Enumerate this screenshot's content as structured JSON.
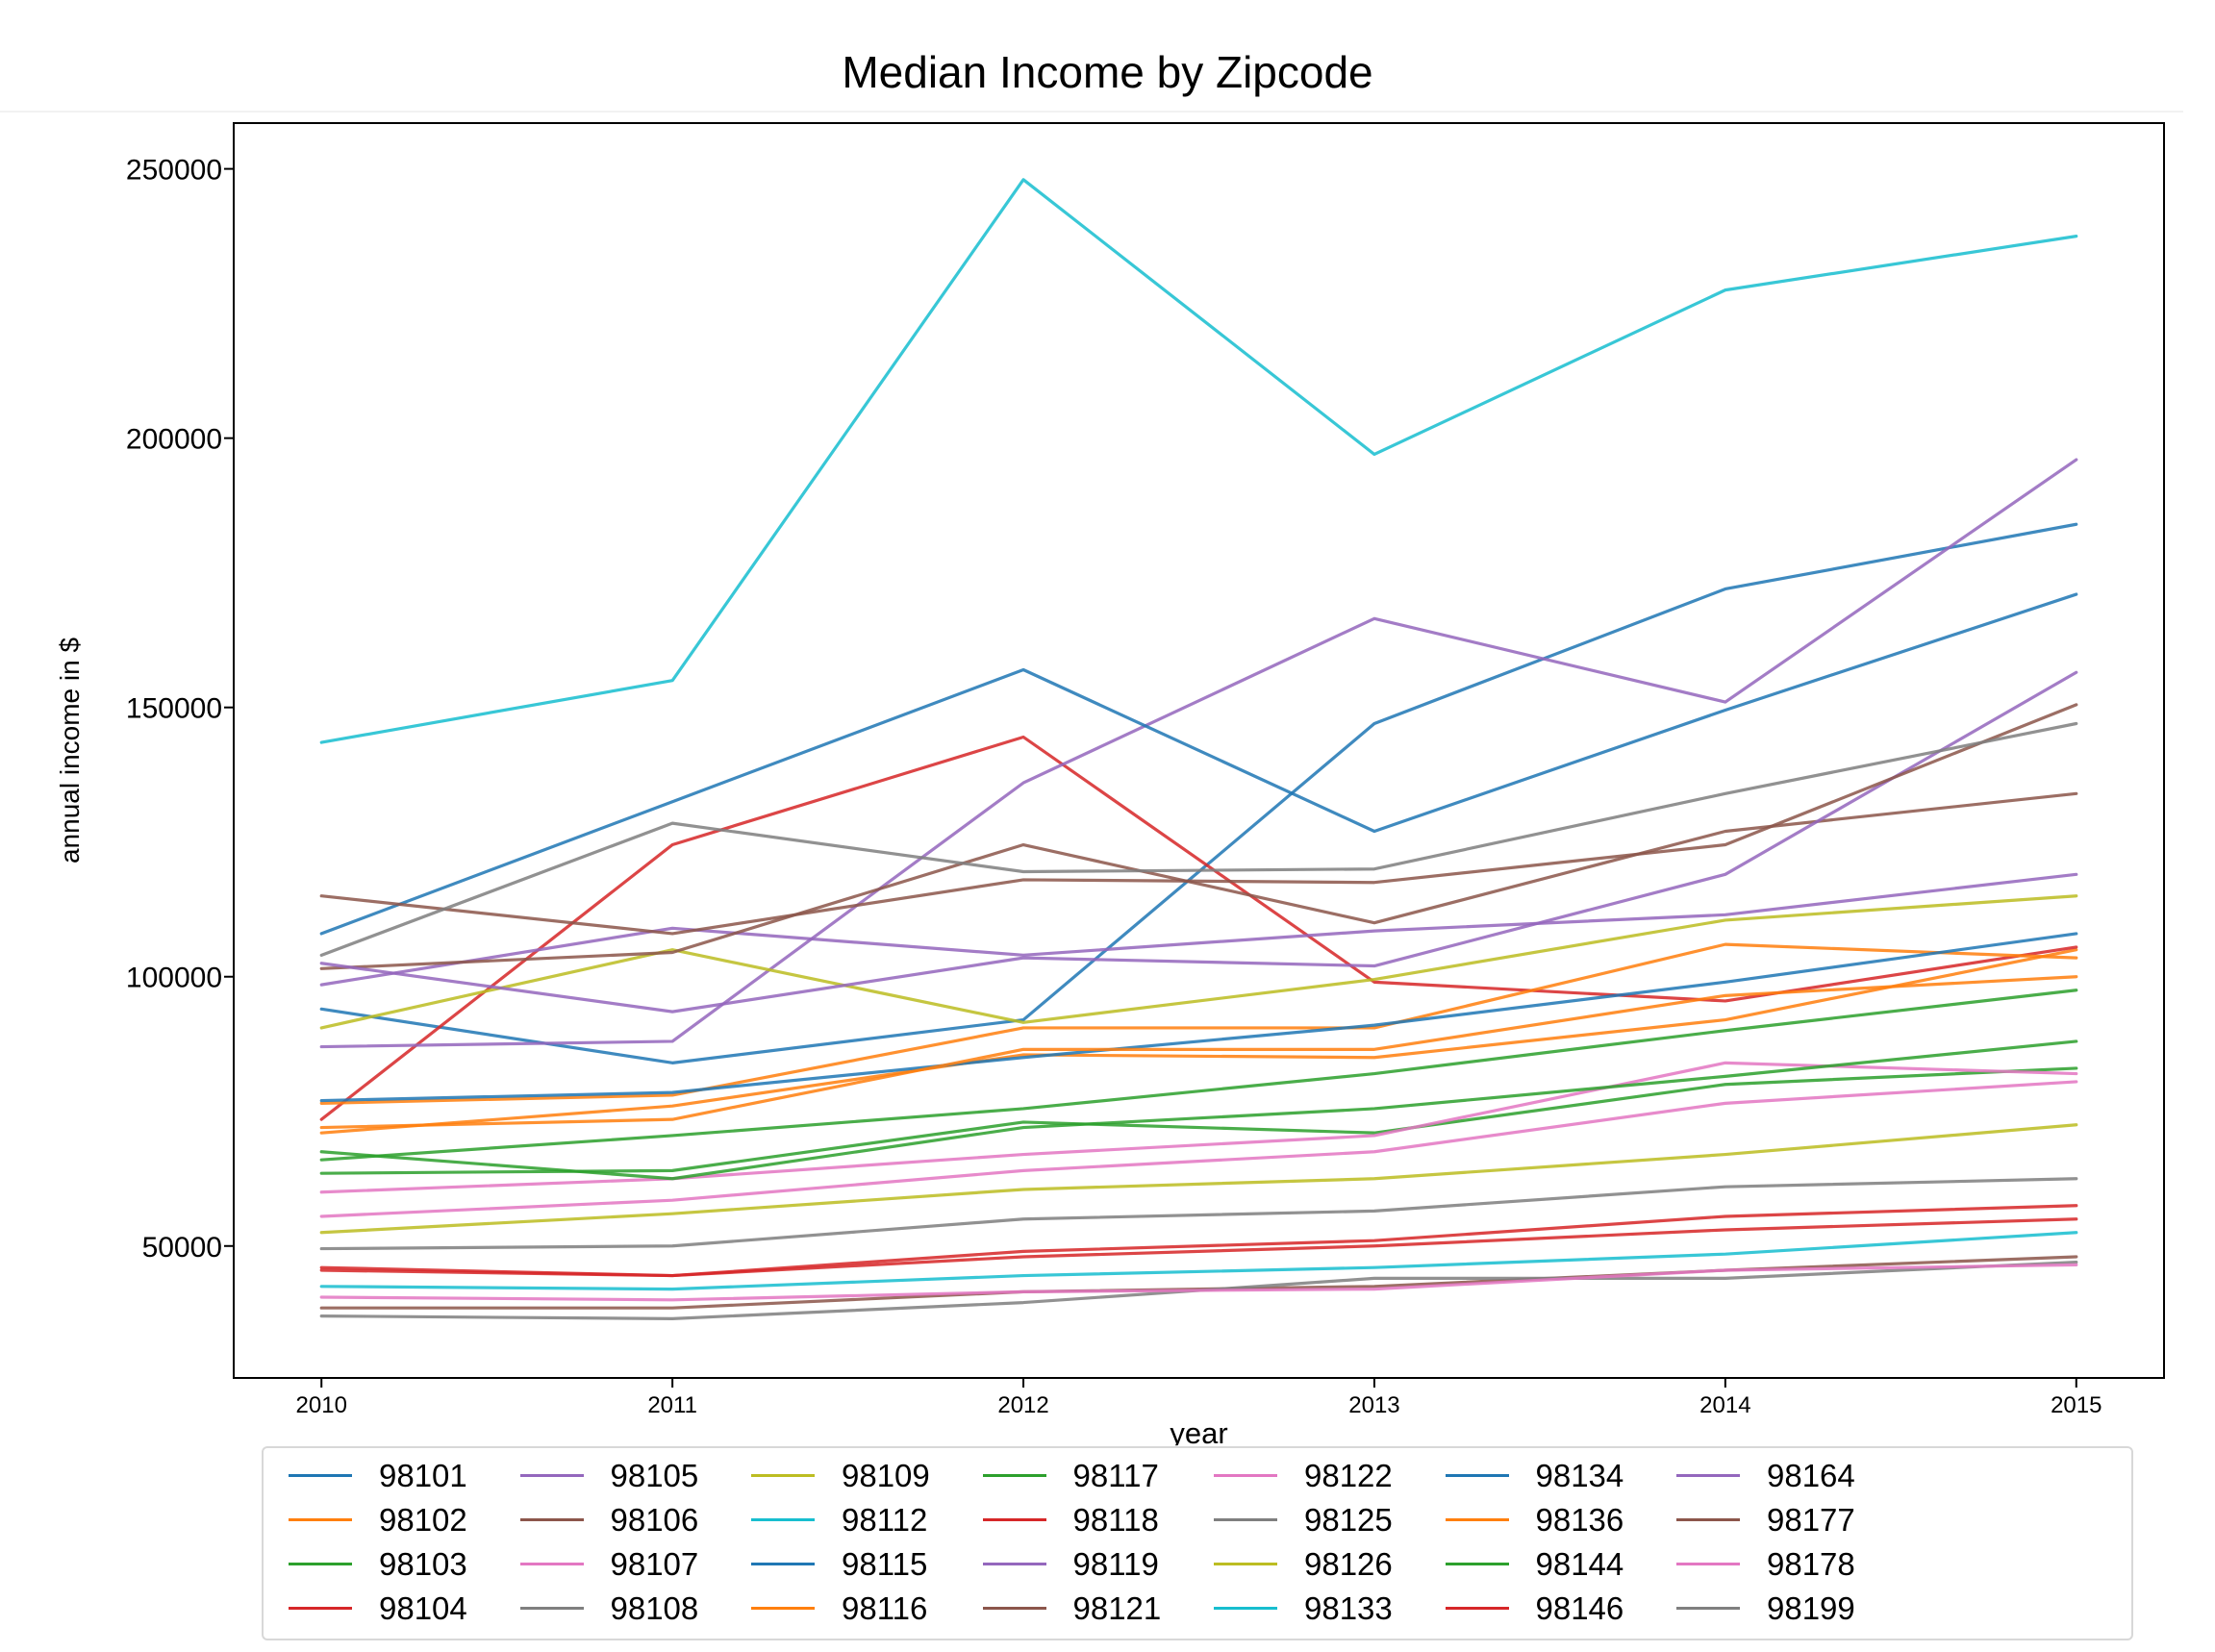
{
  "chart_data": {
    "type": "line",
    "title": "Median Income by Zipcode",
    "xlabel": "year",
    "ylabel": "annual income in $",
    "x": [
      2010,
      2011,
      2012,
      2013,
      2014,
      2015
    ],
    "xticks": [
      "2010",
      "2011",
      "2012",
      "2013",
      "2014",
      "2015"
    ],
    "yticks": [
      "50000",
      "100000",
      "150000",
      "200000",
      "250000"
    ],
    "xlim": [
      2009.75,
      2015.25
    ],
    "ylim": [
      25500,
      258500
    ],
    "grid": false,
    "legend_position": "below",
    "legend_columns": 8,
    "series": [
      {
        "name": "98101",
        "color": "#1f77b4",
        "values": [
          94000,
          84000,
          92000,
          147000,
          172000,
          184000
        ]
      },
      {
        "name": "98102",
        "color": "#ff7f0e",
        "values": [
          71000,
          76000,
          85500,
          85000,
          92000,
          105000
        ]
      },
      {
        "name": "98103",
        "color": "#2ca02c",
        "values": [
          63500,
          64000,
          73000,
          71000,
          80000,
          83000
        ]
      },
      {
        "name": "98104",
        "color": "#d62728",
        "values": [
          73500,
          124500,
          144500,
          99000,
          95500,
          105500
        ]
      },
      {
        "name": "98105",
        "color": "#9467bd",
        "values": [
          87000,
          88000,
          136000,
          166500,
          151000,
          196000
        ]
      },
      {
        "name": "98106",
        "color": "#8c564b",
        "values": [
          38500,
          38500,
          41500,
          42500,
          45500,
          48000
        ]
      },
      {
        "name": "98107",
        "color": "#e377c2",
        "values": [
          60000,
          62500,
          67000,
          70500,
          84000,
          82000
        ]
      },
      {
        "name": "98108",
        "color": "#7f7f7f",
        "values": [
          37000,
          36500,
          39500,
          44000,
          44000,
          47000
        ]
      },
      {
        "name": "98109",
        "color": "#bcbd22",
        "values": [
          90500,
          105000,
          91500,
          99500,
          110500,
          115000
        ]
      },
      {
        "name": "98112",
        "color": "#17becf",
        "values": [
          143500,
          155000,
          248000,
          197000,
          227500,
          237500
        ]
      },
      {
        "name": "98115",
        "color": "#1f77b4",
        "values": [
          108000,
          132500,
          157000,
          127000,
          149500,
          171000
        ]
      },
      {
        "name": "98116",
        "color": "#ff7f0e",
        "values": [
          76500,
          78000,
          90500,
          90500,
          106000,
          103500
        ]
      },
      {
        "name": "98117",
        "color": "#2ca02c",
        "values": [
          66000,
          70500,
          75500,
          82000,
          90000,
          97500
        ]
      },
      {
        "name": "98118",
        "color": "#d62728",
        "values": [
          45500,
          44500,
          48000,
          50000,
          53000,
          55000
        ]
      },
      {
        "name": "98119",
        "color": "#9467bd",
        "values": [
          98500,
          109000,
          104000,
          108500,
          111500,
          119000
        ]
      },
      {
        "name": "98121",
        "color": "#8c564b",
        "values": [
          101500,
          104500,
          124500,
          110000,
          127000,
          134000
        ]
      },
      {
        "name": "98122",
        "color": "#e377c2",
        "values": [
          55500,
          58500,
          64000,
          67500,
          76500,
          80500
        ]
      },
      {
        "name": "98125",
        "color": "#7f7f7f",
        "values": [
          49500,
          50000,
          55000,
          56500,
          61000,
          62500
        ]
      },
      {
        "name": "98126",
        "color": "#bcbd22",
        "values": [
          52500,
          56000,
          60500,
          62500,
          67000,
          72500
        ]
      },
      {
        "name": "98133",
        "color": "#17becf",
        "values": [
          42500,
          42000,
          44500,
          46000,
          48500,
          52500
        ]
      },
      {
        "name": "98134",
        "color": "#1f77b4",
        "values": [
          77000,
          78500,
          85000,
          91000,
          99000,
          108000
        ]
      },
      {
        "name": "98136",
        "color": "#ff7f0e",
        "values": [
          72000,
          73500,
          86500,
          86500,
          96500,
          100000
        ]
      },
      {
        "name": "98144",
        "color": "#2ca02c",
        "values": [
          67500,
          62500,
          72000,
          75500,
          81500,
          88000
        ]
      },
      {
        "name": "98146",
        "color": "#d62728",
        "values": [
          46000,
          44500,
          49000,
          51000,
          55500,
          57500
        ]
      },
      {
        "name": "98164",
        "color": "#9467bd",
        "values": [
          102500,
          93500,
          103500,
          102000,
          119000,
          156500
        ]
      },
      {
        "name": "98177",
        "color": "#8c564b",
        "values": [
          115000,
          108000,
          118000,
          117500,
          124500,
          150500
        ]
      },
      {
        "name": "98178",
        "color": "#e377c2",
        "values": [
          40500,
          40000,
          41500,
          42000,
          45500,
          46500
        ]
      },
      {
        "name": "98199",
        "color": "#7f7f7f",
        "values": [
          104000,
          128500,
          119500,
          120000,
          134000,
          147000
        ]
      }
    ]
  }
}
